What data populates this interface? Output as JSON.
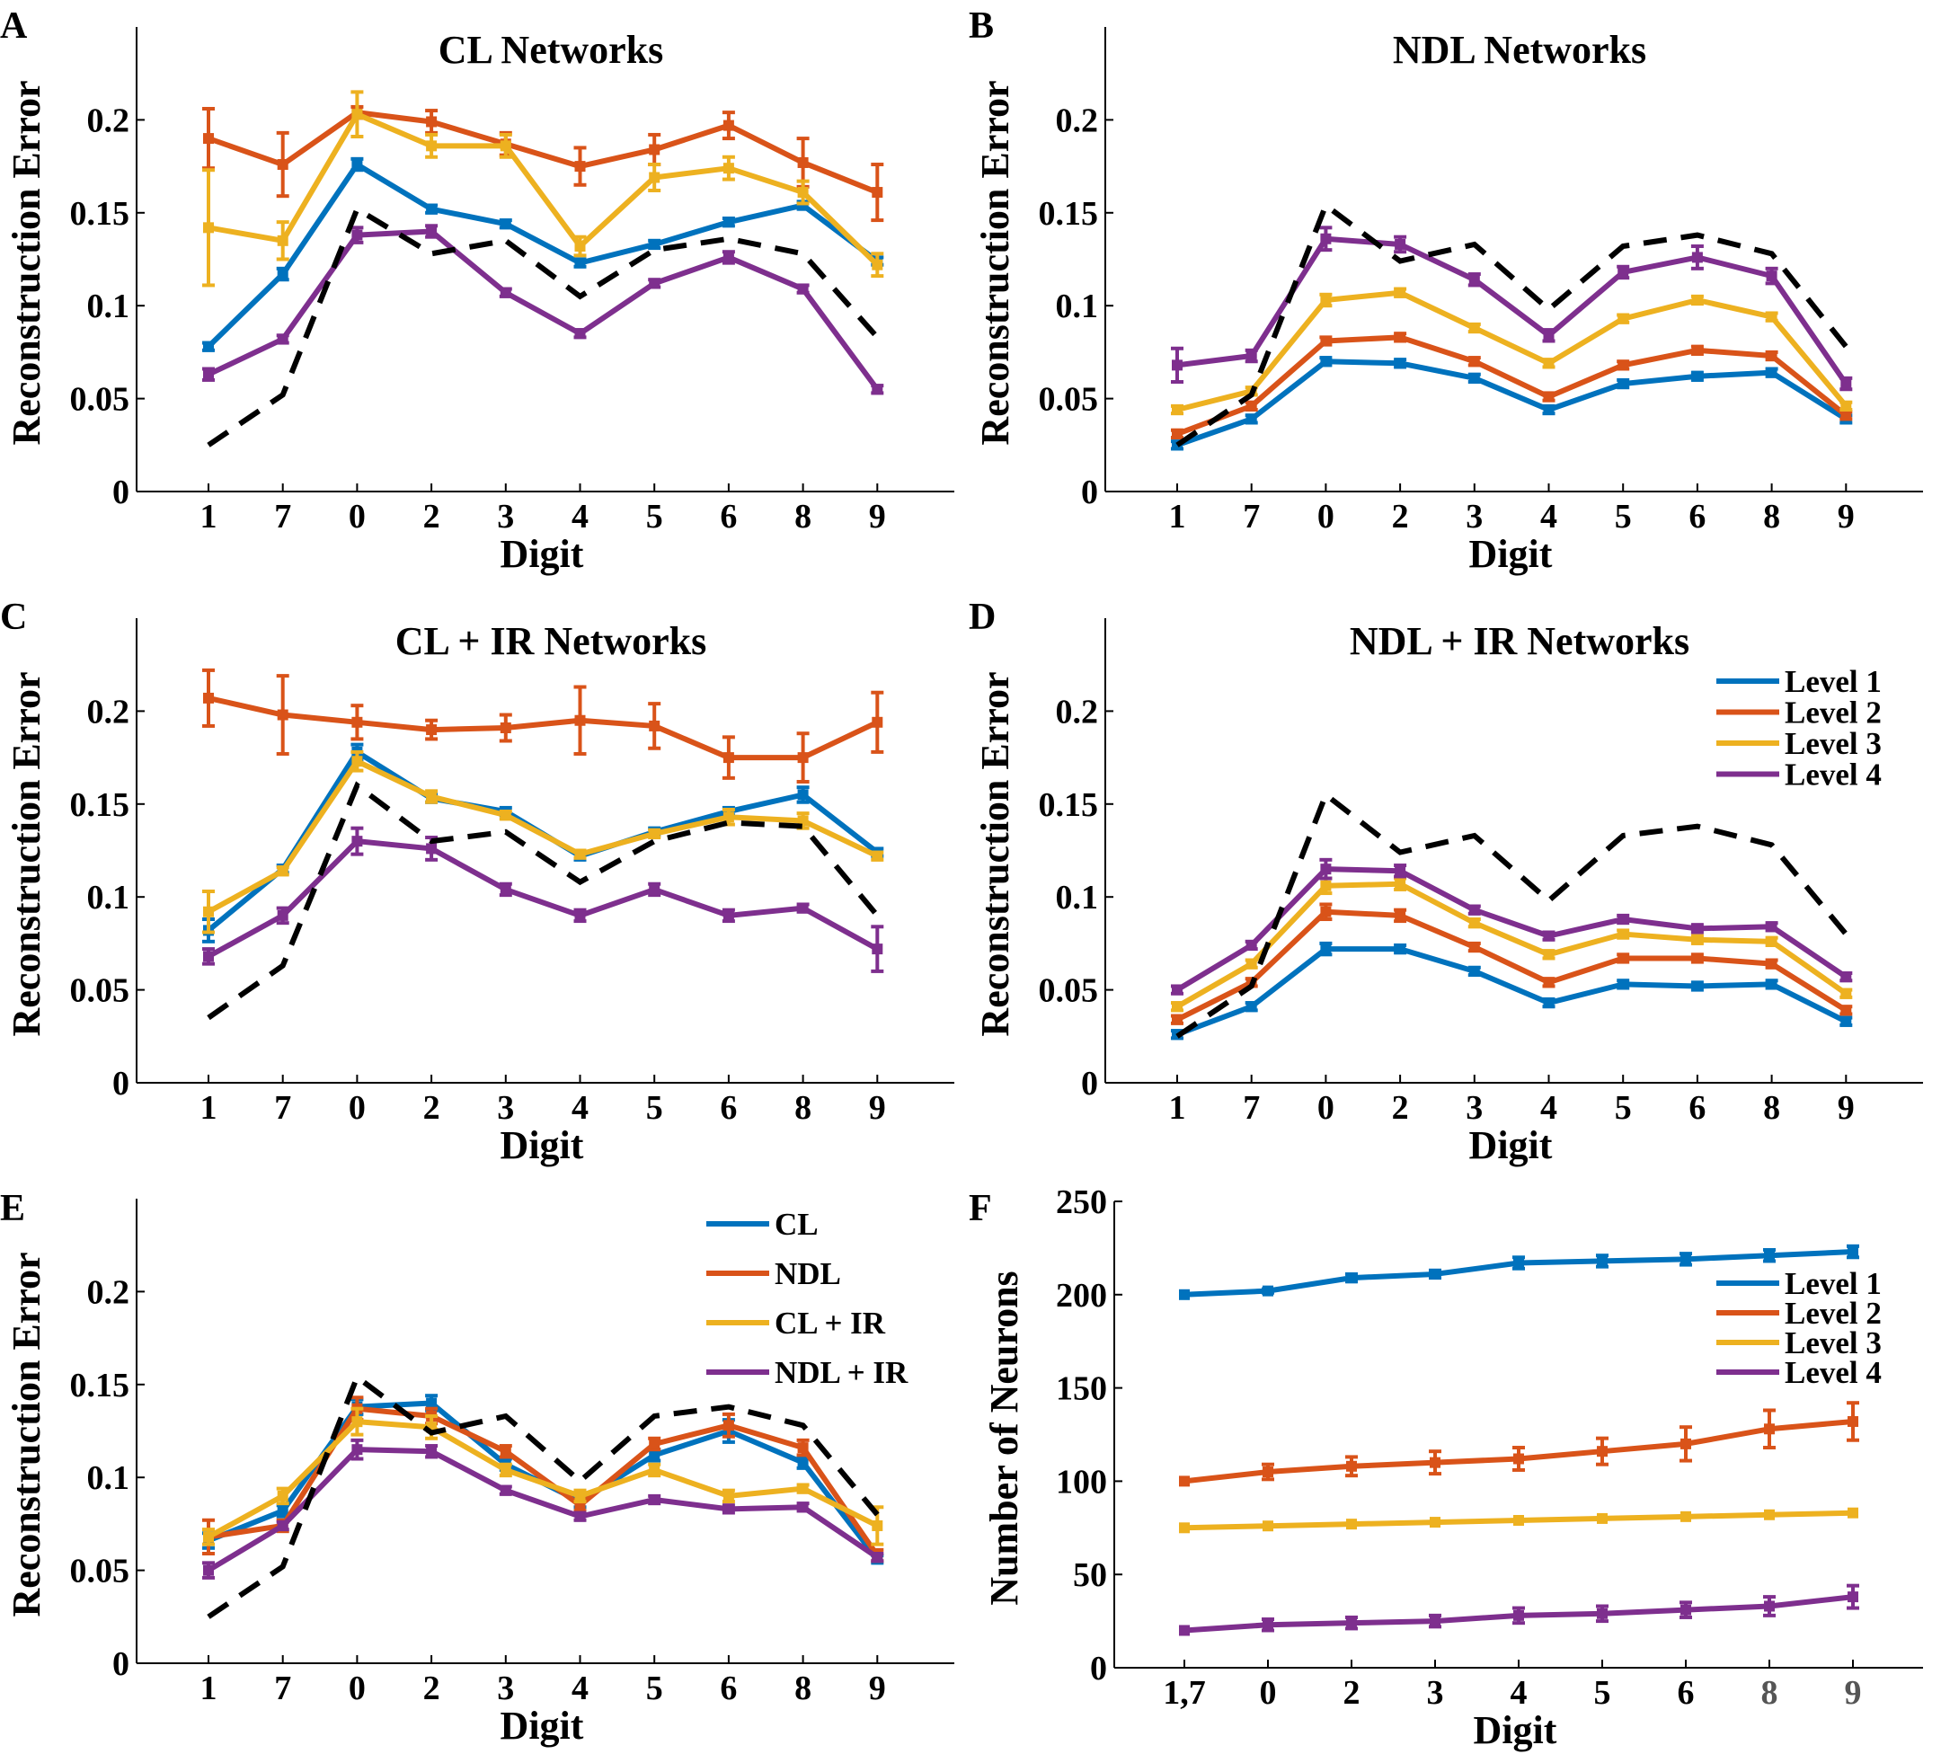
{
  "colors": {
    "Level 1": "#0072bd",
    "Level 2": "#d95319",
    "Level 3": "#edb120",
    "Level 4": "#7e2f8e",
    "CL": "#0072bd",
    "NDL": "#d95319",
    "CL + IR": "#edb120",
    "NDL + IR": "#7e2f8e",
    "dashed": "#000000"
  },
  "chart_data": [
    {
      "letter": "A",
      "type": "line",
      "title": "CL Networks",
      "xlabel": "Digit",
      "ylabel": "Reconstruction Error",
      "categories": [
        "1",
        "7",
        "0",
        "2",
        "3",
        "4",
        "5",
        "6",
        "8",
        "9"
      ],
      "ylim": [
        0,
        0.25
      ],
      "yticks": [
        0,
        0.05,
        0.1,
        0.15,
        0.2
      ],
      "ytick_labels": [
        "0",
        "0.05",
        "0.1",
        "0.15",
        "0.2"
      ],
      "legend": null,
      "dashed": [
        0.025,
        0.052,
        0.152,
        0.128,
        0.135,
        0.105,
        0.13,
        0.136,
        0.128,
        0.083
      ],
      "series": [
        {
          "name": "Level 1",
          "values": [
            0.078,
            0.117,
            0.176,
            0.152,
            0.144,
            0.123,
            0.133,
            0.145,
            0.154,
            0.124
          ],
          "err": [
            0.002,
            0.003,
            0.003,
            0.002,
            0.002,
            0.002,
            0.002,
            0.002,
            0.002,
            0.002
          ]
        },
        {
          "name": "Level 2",
          "values": [
            0.19,
            0.176,
            0.204,
            0.199,
            0.187,
            0.175,
            0.184,
            0.197,
            0.177,
            0.161
          ],
          "err": [
            0.016,
            0.017,
            0.003,
            0.006,
            0.006,
            0.01,
            0.008,
            0.007,
            0.013,
            0.015
          ]
        },
        {
          "name": "Level 3",
          "values": [
            0.142,
            0.135,
            0.203,
            0.186,
            0.186,
            0.132,
            0.169,
            0.174,
            0.161,
            0.122
          ],
          "err": [
            0.031,
            0.01,
            0.012,
            0.006,
            0.006,
            0.005,
            0.007,
            0.006,
            0.006,
            0.006
          ]
        },
        {
          "name": "Level 4",
          "values": [
            0.063,
            0.082,
            0.138,
            0.14,
            0.107,
            0.085,
            0.112,
            0.126,
            0.109,
            0.055
          ],
          "err": [
            0.003,
            0.002,
            0.004,
            0.003,
            0.002,
            0.002,
            0.002,
            0.003,
            0.002,
            0.002
          ]
        }
      ]
    },
    {
      "letter": "B",
      "type": "line",
      "title": "NDL Networks",
      "xlabel": "Digit",
      "ylabel": "Reconstruction Error",
      "categories": [
        "1",
        "7",
        "0",
        "2",
        "3",
        "4",
        "5",
        "6",
        "8",
        "9"
      ],
      "ylim": [
        0,
        0.25
      ],
      "yticks": [
        0,
        0.05,
        0.1,
        0.15,
        0.2
      ],
      "ytick_labels": [
        "0",
        "0.05",
        "0.1",
        "0.15",
        "0.2"
      ],
      "legend": null,
      "dashed": [
        0.025,
        0.052,
        0.154,
        0.124,
        0.133,
        0.098,
        0.132,
        0.138,
        0.128,
        0.078
      ],
      "series": [
        {
          "name": "Level 1",
          "values": [
            0.025,
            0.039,
            0.07,
            0.069,
            0.061,
            0.044,
            0.058,
            0.062,
            0.064,
            0.039
          ],
          "err": [
            0.002,
            0.002,
            0.002,
            0.002,
            0.002,
            0.002,
            0.002,
            0.002,
            0.002,
            0.002
          ]
        },
        {
          "name": "Level 2",
          "values": [
            0.031,
            0.046,
            0.081,
            0.083,
            0.07,
            0.051,
            0.068,
            0.076,
            0.073,
            0.041
          ],
          "err": [
            0.002,
            0.002,
            0.002,
            0.002,
            0.002,
            0.002,
            0.002,
            0.002,
            0.002,
            0.002
          ]
        },
        {
          "name": "Level 3",
          "values": [
            0.044,
            0.054,
            0.103,
            0.107,
            0.088,
            0.069,
            0.093,
            0.103,
            0.094,
            0.046
          ],
          "err": [
            0.002,
            0.002,
            0.003,
            0.002,
            0.002,
            0.002,
            0.002,
            0.002,
            0.002,
            0.002
          ]
        },
        {
          "name": "Level 4",
          "values": [
            0.068,
            0.073,
            0.136,
            0.133,
            0.114,
            0.084,
            0.118,
            0.126,
            0.116,
            0.058
          ],
          "err": [
            0.009,
            0.003,
            0.006,
            0.004,
            0.003,
            0.003,
            0.003,
            0.006,
            0.004,
            0.003
          ]
        }
      ]
    },
    {
      "letter": "C",
      "type": "line",
      "title": "CL + IR Networks",
      "xlabel": "Digit",
      "ylabel": "Reconstruction Error",
      "categories": [
        "1",
        "7",
        "0",
        "2",
        "3",
        "4",
        "5",
        "6",
        "8",
        "9"
      ],
      "ylim": [
        0,
        0.25
      ],
      "yticks": [
        0,
        0.05,
        0.1,
        0.15,
        0.2
      ],
      "ytick_labels": [
        "0",
        "0.05",
        "0.1",
        "0.15",
        "0.2"
      ],
      "legend": null,
      "dashed": [
        0.035,
        0.063,
        0.16,
        0.13,
        0.135,
        0.108,
        0.13,
        0.14,
        0.138,
        0.09
      ],
      "series": [
        {
          "name": "Level 1",
          "values": [
            0.082,
            0.115,
            0.178,
            0.153,
            0.146,
            0.122,
            0.135,
            0.146,
            0.155,
            0.124
          ],
          "err": [
            0.006,
            0.002,
            0.004,
            0.002,
            0.002,
            0.002,
            0.002,
            0.002,
            0.004,
            0.002
          ]
        },
        {
          "name": "Level 2",
          "values": [
            0.207,
            0.198,
            0.194,
            0.19,
            0.191,
            0.195,
            0.192,
            0.175,
            0.175,
            0.194
          ],
          "err": [
            0.015,
            0.021,
            0.009,
            0.005,
            0.007,
            0.018,
            0.012,
            0.011,
            0.013,
            0.016
          ]
        },
        {
          "name": "Level 3",
          "values": [
            0.092,
            0.114,
            0.173,
            0.154,
            0.144,
            0.123,
            0.134,
            0.143,
            0.141,
            0.122
          ],
          "err": [
            0.011,
            0.002,
            0.005,
            0.003,
            0.002,
            0.002,
            0.002,
            0.004,
            0.004,
            0.002
          ]
        },
        {
          "name": "Level 4",
          "values": [
            0.068,
            0.09,
            0.13,
            0.126,
            0.104,
            0.09,
            0.104,
            0.09,
            0.094,
            0.072
          ],
          "err": [
            0.004,
            0.004,
            0.007,
            0.006,
            0.003,
            0.003,
            0.003,
            0.003,
            0.002,
            0.012
          ]
        }
      ]
    },
    {
      "letter": "D",
      "type": "line",
      "title": "NDL + IR Networks",
      "xlabel": "Digit",
      "ylabel": "Reconstruction Error",
      "categories": [
        "1",
        "7",
        "0",
        "2",
        "3",
        "4",
        "5",
        "6",
        "8",
        "9"
      ],
      "ylim": [
        0,
        0.25
      ],
      "yticks": [
        0,
        0.05,
        0.1,
        0.15,
        0.2
      ],
      "ytick_labels": [
        "0",
        "0.05",
        "0.1",
        "0.15",
        "0.2"
      ],
      "legend": {
        "entries": [
          "Level 1",
          "Level 2",
          "Level 3",
          "Level 4"
        ],
        "placement": "top-right"
      },
      "dashed": [
        0.025,
        0.052,
        0.155,
        0.124,
        0.133,
        0.098,
        0.133,
        0.138,
        0.128,
        0.08
      ],
      "series": [
        {
          "name": "Level 1",
          "values": [
            0.026,
            0.041,
            0.072,
            0.072,
            0.06,
            0.043,
            0.053,
            0.052,
            0.053,
            0.033
          ],
          "err": [
            0.002,
            0.002,
            0.003,
            0.002,
            0.002,
            0.002,
            0.002,
            0.002,
            0.002,
            0.002
          ]
        },
        {
          "name": "Level 2",
          "values": [
            0.034,
            0.054,
            0.092,
            0.09,
            0.073,
            0.054,
            0.067,
            0.067,
            0.064,
            0.039
          ],
          "err": [
            0.002,
            0.002,
            0.004,
            0.003,
            0.002,
            0.002,
            0.002,
            0.002,
            0.002,
            0.002
          ]
        },
        {
          "name": "Level 3",
          "values": [
            0.041,
            0.064,
            0.106,
            0.107,
            0.086,
            0.069,
            0.08,
            0.077,
            0.076,
            0.048
          ],
          "err": [
            0.002,
            0.002,
            0.004,
            0.003,
            0.002,
            0.002,
            0.002,
            0.002,
            0.002,
            0.002
          ]
        },
        {
          "name": "Level 4",
          "values": [
            0.05,
            0.074,
            0.115,
            0.114,
            0.093,
            0.079,
            0.088,
            0.083,
            0.084,
            0.057
          ],
          "err": [
            0.002,
            0.002,
            0.005,
            0.003,
            0.002,
            0.002,
            0.002,
            0.002,
            0.002,
            0.002
          ]
        }
      ]
    },
    {
      "letter": "E",
      "type": "line",
      "title": "",
      "xlabel": "Digit",
      "ylabel": "Reconstruction Error",
      "categories": [
        "1",
        "7",
        "0",
        "2",
        "3",
        "4",
        "5",
        "6",
        "8",
        "9"
      ],
      "ylim": [
        0,
        0.25
      ],
      "yticks": [
        0,
        0.05,
        0.1,
        0.15,
        0.2
      ],
      "ytick_labels": [
        "0",
        "0.05",
        "0.1",
        "0.15",
        "0.2"
      ],
      "legend": {
        "entries": [
          "CL",
          "NDL",
          "CL + IR",
          "NDL + IR"
        ],
        "placement": "top-right"
      },
      "dashed": [
        0.025,
        0.052,
        0.154,
        0.124,
        0.133,
        0.098,
        0.133,
        0.138,
        0.128,
        0.08
      ],
      "series": [
        {
          "name": "CL",
          "values": [
            0.066,
            0.082,
            0.138,
            0.14,
            0.107,
            0.087,
            0.112,
            0.125,
            0.108,
            0.056
          ],
          "err": [
            0.004,
            0.003,
            0.004,
            0.004,
            0.003,
            0.003,
            0.003,
            0.006,
            0.003,
            0.002
          ]
        },
        {
          "name": "NDL",
          "values": [
            0.068,
            0.074,
            0.137,
            0.133,
            0.114,
            0.085,
            0.118,
            0.128,
            0.116,
            0.058
          ],
          "err": [
            0.009,
            0.003,
            0.006,
            0.004,
            0.003,
            0.003,
            0.003,
            0.006,
            0.004,
            0.003
          ]
        },
        {
          "name": "CL + IR",
          "values": [
            0.068,
            0.09,
            0.13,
            0.127,
            0.104,
            0.09,
            0.104,
            0.09,
            0.094,
            0.074
          ],
          "err": [
            0.004,
            0.004,
            0.007,
            0.006,
            0.003,
            0.003,
            0.003,
            0.003,
            0.002,
            0.01
          ]
        },
        {
          "name": "NDL + IR",
          "values": [
            0.05,
            0.074,
            0.115,
            0.114,
            0.093,
            0.079,
            0.088,
            0.083,
            0.084,
            0.057
          ],
          "err": [
            0.004,
            0.002,
            0.005,
            0.003,
            0.002,
            0.002,
            0.002,
            0.002,
            0.002,
            0.002
          ]
        }
      ]
    },
    {
      "letter": "F",
      "type": "line",
      "title": "",
      "xlabel": "Digit",
      "ylabel": "Number of Neurons",
      "categories": [
        "1,7",
        "0",
        "2",
        "3",
        "4",
        "5",
        "6",
        "8",
        "9"
      ],
      "ylim": [
        0,
        250
      ],
      "yticks": [
        0,
        50,
        100,
        150,
        200,
        250
      ],
      "ytick_labels": [
        "0",
        "50",
        "100",
        "150",
        "200",
        "250"
      ],
      "legend": {
        "entries": [
          "Level 1",
          "Level 2",
          "Level 3",
          "Level 4"
        ],
        "placement": "top-right"
      },
      "dashed": null,
      "series": [
        {
          "name": "Level 1",
          "values": [
            200,
            202,
            209,
            211,
            217,
            218,
            219,
            221,
            223
          ],
          "err": [
            0,
            1,
            2,
            2,
            3,
            3,
            3,
            3,
            3
          ]
        },
        {
          "name": "Level 2",
          "values": [
            100,
            105,
            108,
            110,
            112,
            116,
            120,
            128,
            132
          ],
          "err": [
            0,
            4,
            5,
            6,
            6,
            7,
            9,
            10,
            10
          ]
        },
        {
          "name": "Level 3",
          "values": [
            75,
            76,
            77,
            78,
            79,
            80,
            81,
            82,
            83
          ],
          "err": [
            0,
            0,
            0,
            0,
            0,
            0,
            0,
            0,
            0
          ]
        },
        {
          "name": "Level 4",
          "values": [
            20,
            23,
            24,
            25,
            28,
            29,
            31,
            33,
            38
          ],
          "err": [
            0,
            3,
            3,
            3,
            4,
            4,
            4,
            5,
            6
          ]
        }
      ]
    }
  ]
}
